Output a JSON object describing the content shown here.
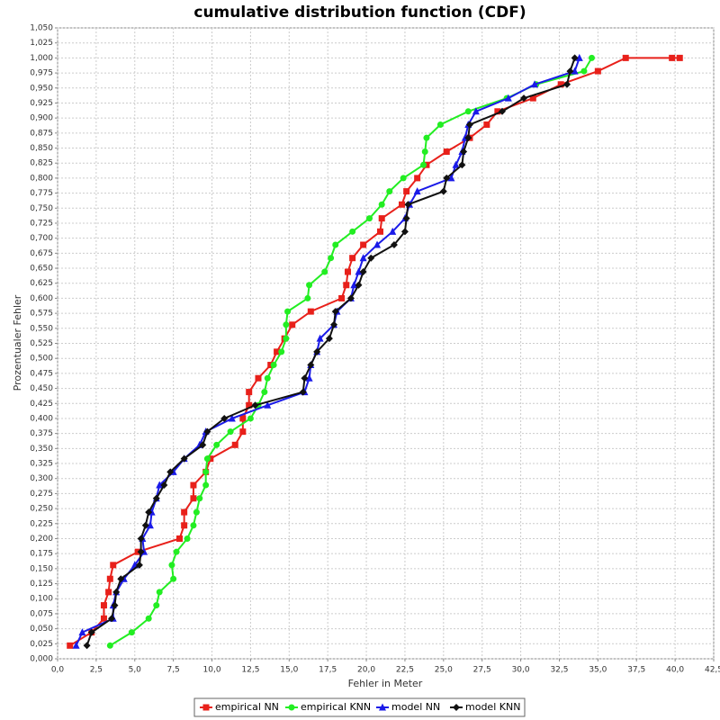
{
  "chart_data": {
    "type": "line",
    "title": "cumulative distribution function (CDF)",
    "x_label": "Fehler in Meter",
    "y_label": "Prozentualer Fehler",
    "xlim": [
      0,
      42.5
    ],
    "ylim": [
      0,
      1.05
    ],
    "grid": true,
    "legend": "bottom",
    "xticks": [
      {
        "value": 0,
        "label": "0,0"
      },
      {
        "value": 2.5,
        "label": "2,5"
      },
      {
        "value": 5,
        "label": "5,0"
      },
      {
        "value": 7.5,
        "label": "7,5"
      },
      {
        "value": 10,
        "label": "10,0"
      },
      {
        "value": 12.5,
        "label": "12,5"
      },
      {
        "value": 15,
        "label": "15,0"
      },
      {
        "value": 17.5,
        "label": "17,5"
      },
      {
        "value": 20,
        "label": "20,0"
      },
      {
        "value": 22.5,
        "label": "22,5"
      },
      {
        "value": 25,
        "label": "25,0"
      },
      {
        "value": 27.5,
        "label": "27,5"
      },
      {
        "value": 30,
        "label": "30,0"
      },
      {
        "value": 32.5,
        "label": "32,5"
      },
      {
        "value": 35,
        "label": "35,0"
      },
      {
        "value": 37.5,
        "label": "37,5"
      },
      {
        "value": 40,
        "label": "40,0"
      },
      {
        "value": 42.5,
        "label": "42,5"
      }
    ],
    "yticks": [
      {
        "value": 0,
        "label": "0,000"
      },
      {
        "value": 0.025,
        "label": "0,025"
      },
      {
        "value": 0.05,
        "label": "0,050"
      },
      {
        "value": 0.075,
        "label": "0,075"
      },
      {
        "value": 0.1,
        "label": "0,100"
      },
      {
        "value": 0.125,
        "label": "0,125"
      },
      {
        "value": 0.15,
        "label": "0,150"
      },
      {
        "value": 0.175,
        "label": "0,175"
      },
      {
        "value": 0.2,
        "label": "0,200"
      },
      {
        "value": 0.225,
        "label": "0,225"
      },
      {
        "value": 0.25,
        "label": "0,250"
      },
      {
        "value": 0.275,
        "label": "0,275"
      },
      {
        "value": 0.3,
        "label": "0,300"
      },
      {
        "value": 0.325,
        "label": "0,325"
      },
      {
        "value": 0.35,
        "label": "0,350"
      },
      {
        "value": 0.375,
        "label": "0,375"
      },
      {
        "value": 0.4,
        "label": "0,400"
      },
      {
        "value": 0.425,
        "label": "0,425"
      },
      {
        "value": 0.45,
        "label": "0,450"
      },
      {
        "value": 0.475,
        "label": "0,475"
      },
      {
        "value": 0.5,
        "label": "0,500"
      },
      {
        "value": 0.525,
        "label": "0,525"
      },
      {
        "value": 0.55,
        "label": "0,550"
      },
      {
        "value": 0.575,
        "label": "0,575"
      },
      {
        "value": 0.6,
        "label": "0,600"
      },
      {
        "value": 0.625,
        "label": "0,625"
      },
      {
        "value": 0.65,
        "label": "0,650"
      },
      {
        "value": 0.675,
        "label": "0,675"
      },
      {
        "value": 0.7,
        "label": "0,700"
      },
      {
        "value": 0.725,
        "label": "0,725"
      },
      {
        "value": 0.75,
        "label": "0,750"
      },
      {
        "value": 0.775,
        "label": "0,775"
      },
      {
        "value": 0.8,
        "label": "0,800"
      },
      {
        "value": 0.825,
        "label": "0,825"
      },
      {
        "value": 0.85,
        "label": "0,850"
      },
      {
        "value": 0.875,
        "label": "0,875"
      },
      {
        "value": 0.9,
        "label": "0,900"
      },
      {
        "value": 0.925,
        "label": "0,925"
      },
      {
        "value": 0.95,
        "label": "0,950"
      },
      {
        "value": 0.975,
        "label": "0,975"
      },
      {
        "value": 1.0,
        "label": "1,000"
      },
      {
        "value": 1.025,
        "label": "1,025"
      },
      {
        "value": 1.05,
        "label": "1,050"
      }
    ],
    "series": [
      {
        "name": "empirical NN",
        "color": "#e8201a",
        "marker": "square",
        "x": [
          0.8,
          2.2,
          3.0,
          3.0,
          3.3,
          3.4,
          3.6,
          5.2,
          7.9,
          8.2,
          8.2,
          8.8,
          8.8,
          9.6,
          9.9,
          11.5,
          12.0,
          12.0,
          12.4,
          12.4,
          13.0,
          13.8,
          14.2,
          14.7,
          15.2,
          16.4,
          18.4,
          18.7,
          18.8,
          19.1,
          19.8,
          20.9,
          21.0,
          22.3,
          22.6,
          23.3,
          23.9,
          25.2,
          26.7,
          27.8,
          28.5,
          30.8,
          32.6,
          35.0,
          36.8,
          39.8,
          40.3
        ],
        "values": [
          0.022,
          0.044,
          0.067,
          0.089,
          0.111,
          0.133,
          0.156,
          0.178,
          0.2,
          0.222,
          0.244,
          0.267,
          0.289,
          0.311,
          0.333,
          0.356,
          0.378,
          0.4,
          0.422,
          0.444,
          0.467,
          0.489,
          0.511,
          0.533,
          0.556,
          0.578,
          0.6,
          0.622,
          0.644,
          0.667,
          0.689,
          0.711,
          0.733,
          0.756,
          0.778,
          0.8,
          0.822,
          0.844,
          0.867,
          0.889,
          0.911,
          0.933,
          0.956,
          0.978,
          1.0,
          1.0,
          1.0
        ]
      },
      {
        "name": "empirical KNN",
        "color": "#22ee22",
        "marker": "circle",
        "x": [
          3.4,
          4.8,
          5.9,
          6.4,
          6.6,
          7.5,
          7.4,
          7.7,
          8.4,
          8.8,
          9.0,
          9.2,
          9.6,
          9.6,
          9.7,
          10.3,
          11.2,
          12.5,
          13.0,
          13.4,
          13.6,
          14.0,
          14.5,
          14.8,
          14.8,
          14.9,
          16.2,
          16.3,
          17.3,
          17.7,
          18.0,
          19.1,
          20.2,
          21.0,
          21.5,
          22.4,
          23.7,
          23.8,
          23.9,
          24.8,
          26.6,
          29.1,
          31.0,
          34.1,
          34.6
        ],
        "values": [
          0.022,
          0.044,
          0.067,
          0.089,
          0.111,
          0.133,
          0.156,
          0.178,
          0.2,
          0.222,
          0.244,
          0.267,
          0.289,
          0.311,
          0.333,
          0.356,
          0.378,
          0.4,
          0.422,
          0.444,
          0.467,
          0.489,
          0.511,
          0.533,
          0.556,
          0.578,
          0.6,
          0.622,
          0.644,
          0.667,
          0.689,
          0.711,
          0.733,
          0.756,
          0.778,
          0.8,
          0.822,
          0.844,
          0.867,
          0.889,
          0.911,
          0.933,
          0.956,
          0.978,
          1.0
        ]
      },
      {
        "name": "model NN",
        "color": "#1a1ae8",
        "marker": "triangle",
        "x": [
          1.2,
          1.6,
          3.6,
          3.6,
          3.8,
          4.3,
          5.0,
          5.6,
          5.5,
          6.0,
          6.1,
          6.4,
          6.6,
          7.5,
          8.2,
          9.2,
          9.6,
          11.3,
          13.6,
          16.0,
          16.3,
          16.4,
          16.8,
          17.0,
          17.9,
          18.1,
          19.0,
          19.2,
          19.5,
          19.8,
          20.7,
          21.7,
          22.5,
          22.8,
          23.3,
          25.5,
          25.8,
          26.2,
          26.4,
          26.6,
          27.1,
          29.2,
          30.9,
          33.5,
          33.8
        ],
        "values": [
          0.022,
          0.044,
          0.067,
          0.089,
          0.111,
          0.133,
          0.156,
          0.178,
          0.2,
          0.222,
          0.244,
          0.267,
          0.289,
          0.311,
          0.333,
          0.356,
          0.378,
          0.4,
          0.422,
          0.444,
          0.467,
          0.489,
          0.511,
          0.533,
          0.556,
          0.578,
          0.6,
          0.622,
          0.644,
          0.667,
          0.689,
          0.711,
          0.733,
          0.756,
          0.778,
          0.8,
          0.822,
          0.844,
          0.867,
          0.889,
          0.911,
          0.933,
          0.956,
          0.978,
          1.0
        ]
      },
      {
        "name": "model KNN",
        "color": "#111111",
        "marker": "diamond",
        "x": [
          1.9,
          2.2,
          3.5,
          3.7,
          3.8,
          4.1,
          5.3,
          5.4,
          5.4,
          5.7,
          5.9,
          6.4,
          6.9,
          7.3,
          8.2,
          9.4,
          9.7,
          10.8,
          12.8,
          15.9,
          16.0,
          16.4,
          16.8,
          17.6,
          17.9,
          18.0,
          19.0,
          19.5,
          19.8,
          20.3,
          21.8,
          22.5,
          22.6,
          22.7,
          25.0,
          25.2,
          26.2,
          26.3,
          26.6,
          26.7,
          28.8,
          30.2,
          33.0,
          33.2,
          33.5
        ],
        "values": [
          0.022,
          0.044,
          0.067,
          0.089,
          0.111,
          0.133,
          0.156,
          0.178,
          0.2,
          0.222,
          0.244,
          0.267,
          0.289,
          0.311,
          0.333,
          0.356,
          0.378,
          0.4,
          0.422,
          0.444,
          0.467,
          0.489,
          0.511,
          0.533,
          0.556,
          0.578,
          0.6,
          0.622,
          0.644,
          0.667,
          0.689,
          0.711,
          0.733,
          0.756,
          0.778,
          0.8,
          0.822,
          0.844,
          0.867,
          0.889,
          0.911,
          0.933,
          0.956,
          0.978,
          1.0
        ]
      }
    ]
  }
}
